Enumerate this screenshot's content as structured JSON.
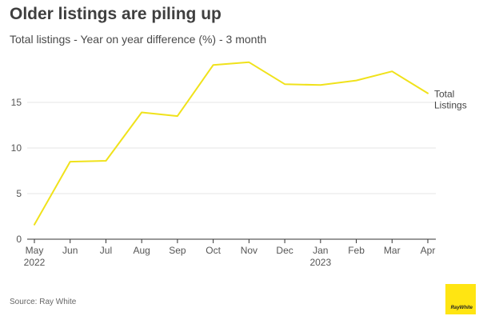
{
  "title": "Older listings are piling up",
  "subtitle": "Total listings - Year on year difference (%) - 3 month",
  "source": "Source: Ray White",
  "logo": {
    "text": "RayWhite",
    "color": "#ffe512"
  },
  "chart_data": {
    "type": "line",
    "categories": [
      "May",
      "Jun",
      "Jul",
      "Aug",
      "Sep",
      "Oct",
      "Nov",
      "Dec",
      "Jan",
      "Feb",
      "Mar",
      "Apr"
    ],
    "category_sublabels": [
      "2022",
      "",
      "",
      "",
      "",
      "",
      "",
      "",
      "2023",
      "",
      "",
      ""
    ],
    "series": [
      {
        "name": "Total Listings",
        "values": [
          1.6,
          8.5,
          8.6,
          13.9,
          13.5,
          19.1,
          19.4,
          17.0,
          16.9,
          17.4,
          18.4,
          16.0
        ],
        "color": "#f0e21b"
      }
    ],
    "yticks": [
      0,
      5,
      10,
      15
    ],
    "ylim": [
      0,
      20
    ],
    "grid": true,
    "legend": "end-of-line label"
  }
}
